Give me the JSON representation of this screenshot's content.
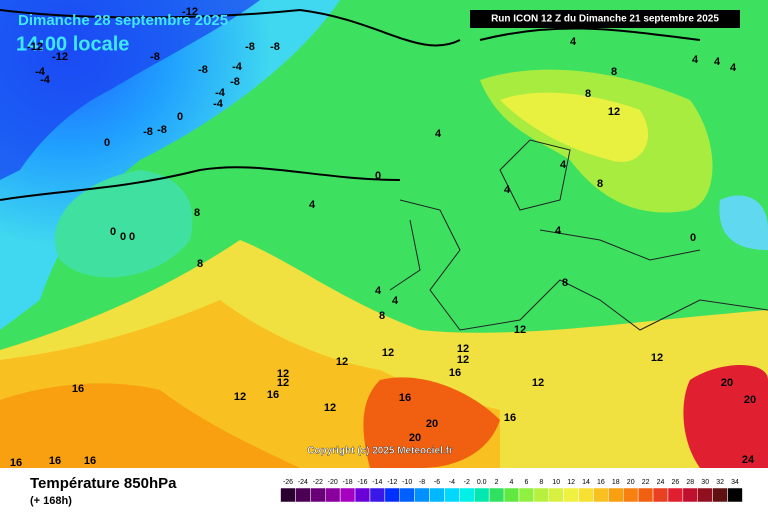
{
  "header": {
    "date": "Dimanche 28 septembre 2025",
    "time": "14:00 locale",
    "run": "Run ICON 12 Z du Dimanche 21 septembre 2025"
  },
  "map": {
    "copyright": "Copyright (c) 2025 Meteociel.fr",
    "contour_labels": [
      "-12",
      "-12",
      "-12",
      "-8",
      "-8",
      "-8",
      "-8",
      "-8",
      "-4",
      "-4",
      "-4",
      "-4",
      "-4",
      "-8",
      "-8",
      "0",
      "0",
      "0",
      "0",
      "0",
      "0",
      "0",
      "4",
      "4",
      "4",
      "4",
      "4",
      "4",
      "4",
      "4",
      "4",
      "4",
      "8",
      "8",
      "8",
      "8",
      "8",
      "8",
      "12",
      "12",
      "12",
      "12",
      "12",
      "12",
      "12",
      "12",
      "12",
      "16",
      "16",
      "16",
      "16",
      "16",
      "16",
      "16",
      "20",
      "20",
      "20",
      "20",
      "24",
      "4",
      "8",
      "12",
      "16",
      "12",
      "12"
    ]
  },
  "footer": {
    "title": "Température 850hPa",
    "lead": "(+ 168h)"
  },
  "colorbar": {
    "ticks": [
      "-26",
      "-24",
      "-22",
      "-20",
      "-18",
      "-16",
      "-14",
      "-12",
      "-10",
      "-8",
      "-6",
      "-4",
      "-2",
      "0.0",
      "2",
      "4",
      "6",
      "8",
      "10",
      "12",
      "14",
      "16",
      "18",
      "20",
      "22",
      "24",
      "26",
      "28",
      "30",
      "32",
      "34"
    ],
    "colors": [
      "#2a0030",
      "#4b0054",
      "#6a0078",
      "#8a009c",
      "#a600c0",
      "#6a00d8",
      "#3a18e8",
      "#0030ff",
      "#0060ff",
      "#0090ff",
      "#00b8ff",
      "#00d8ff",
      "#00f0e8",
      "#00e8b0",
      "#30e060",
      "#60e840",
      "#90f040",
      "#b8f040",
      "#d8f040",
      "#f0f040",
      "#f8e030",
      "#f8c020",
      "#f8a010",
      "#f88010",
      "#f06010",
      "#e84020",
      "#e02030",
      "#c01030",
      "#901020",
      "#601010",
      "#000000"
    ]
  }
}
